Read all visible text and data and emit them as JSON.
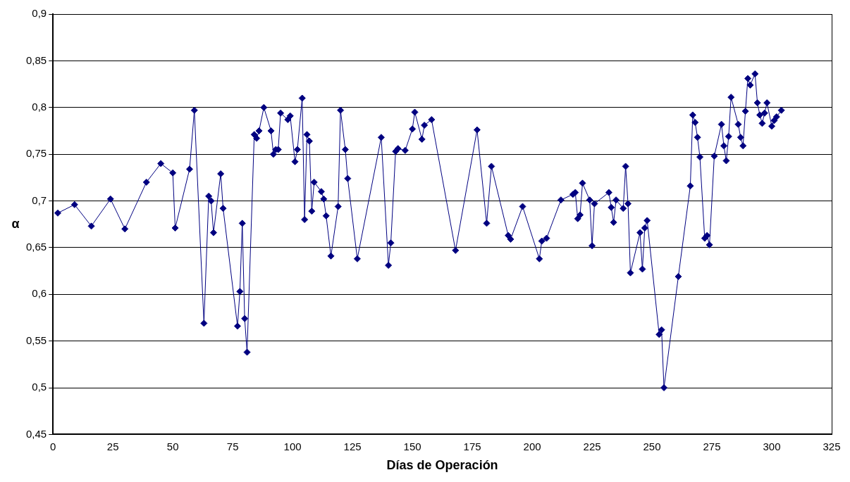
{
  "chart_data": {
    "type": "line",
    "xlabel": "Días de Operación",
    "ylabel": "α",
    "x": [
      2,
      9,
      16,
      24,
      30,
      39,
      45,
      50,
      51,
      57,
      59,
      63,
      65,
      66,
      67,
      70,
      71,
      77,
      78,
      79,
      80,
      81,
      84,
      85,
      86,
      88,
      91,
      92,
      93,
      94,
      95,
      98,
      99,
      101,
      102,
      104,
      105,
      106,
      107,
      108,
      109,
      112,
      113,
      114,
      116,
      119,
      120,
      122,
      123,
      127,
      137,
      140,
      141,
      143,
      144,
      147,
      150,
      151,
      154,
      155,
      158,
      168,
      177,
      181,
      183,
      190,
      191,
      196,
      203,
      204,
      206,
      212,
      217,
      218,
      219,
      220,
      221,
      224,
      225,
      226,
      232,
      233,
      234,
      235,
      238,
      239,
      240,
      241,
      245,
      246,
      247,
      248,
      253,
      254,
      255,
      261,
      266,
      267,
      268,
      269,
      270,
      272,
      273,
      274,
      276,
      279,
      280,
      281,
      282,
      283,
      286,
      287,
      288,
      289,
      290,
      291,
      293,
      294,
      295,
      296,
      297,
      298,
      300,
      301,
      302,
      304
    ],
    "series": [
      {
        "color": "#000080",
        "values": [
          0.687,
          0.696,
          0.673,
          0.702,
          0.67,
          0.72,
          0.74,
          0.73,
          0.671,
          0.734,
          0.797,
          0.569,
          0.705,
          0.7,
          0.666,
          0.729,
          0.692,
          0.566,
          0.603,
          0.676,
          0.574,
          0.538,
          0.771,
          0.767,
          0.775,
          0.8,
          0.775,
          0.75,
          0.755,
          0.755,
          0.794,
          0.787,
          0.791,
          0.742,
          0.755,
          0.81,
          0.68,
          0.771,
          0.764,
          0.689,
          0.72,
          0.71,
          0.702,
          0.684,
          0.641,
          0.694,
          0.797,
          0.755,
          0.724,
          0.638,
          0.768,
          0.631,
          0.655,
          0.753,
          0.756,
          0.754,
          0.777,
          0.795,
          0.766,
          0.781,
          0.787,
          0.647,
          0.776,
          0.676,
          0.737,
          0.663,
          0.659,
          0.694,
          0.638,
          0.657,
          0.66,
          0.701,
          0.707,
          0.709,
          0.681,
          0.685,
          0.719,
          0.701,
          0.652,
          0.697,
          0.709,
          0.693,
          0.677,
          0.701,
          0.692,
          0.737,
          0.697,
          0.623,
          0.666,
          0.627,
          0.671,
          0.679,
          0.557,
          0.562,
          0.5,
          0.619,
          0.716,
          0.792,
          0.784,
          0.768,
          0.747,
          0.66,
          0.663,
          0.653,
          0.748,
          0.782,
          0.759,
          0.743,
          0.769,
          0.811,
          0.782,
          0.768,
          0.759,
          0.796,
          0.831,
          0.824,
          0.836,
          0.805,
          0.792,
          0.783,
          0.794,
          0.805,
          0.78,
          0.786,
          0.79,
          0.797
        ]
      }
    ],
    "xlim": [
      0,
      325
    ],
    "xticks": [
      0,
      25,
      50,
      75,
      100,
      125,
      150,
      175,
      200,
      225,
      250,
      275,
      300,
      325
    ],
    "ylim": [
      0.45,
      0.9
    ],
    "yticks": [
      {
        "value": 0.45,
        "label": "0,45"
      },
      {
        "value": 0.5,
        "label": "0,5"
      },
      {
        "value": 0.55,
        "label": "0,55"
      },
      {
        "value": 0.6,
        "label": "0,6"
      },
      {
        "value": 0.65,
        "label": "0,65"
      },
      {
        "value": 0.7,
        "label": "0,7"
      },
      {
        "value": 0.75,
        "label": "0,75"
      },
      {
        "value": 0.8,
        "label": "0,8"
      },
      {
        "value": 0.85,
        "label": "0,85"
      },
      {
        "value": 0.9,
        "label": "0,9"
      }
    ],
    "grid": "y",
    "marker": "diamond",
    "line_style": "solid",
    "legend": false
  }
}
